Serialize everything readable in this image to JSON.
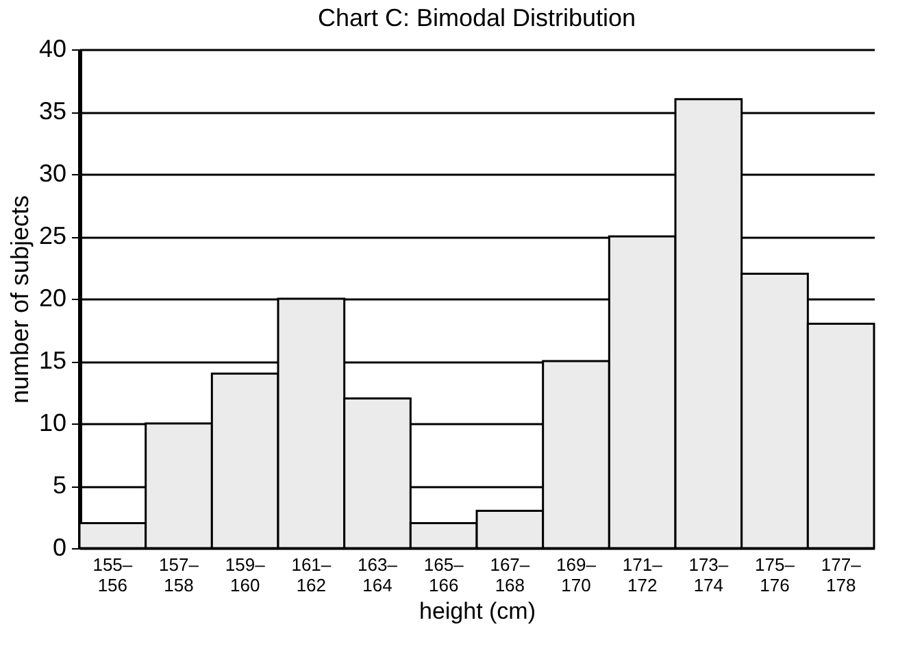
{
  "chart_data": {
    "type": "bar",
    "title": "Chart C: Bimodal Distribution",
    "xlabel": "height (cm)",
    "ylabel": "number of subjects",
    "categories": [
      "155–156",
      "157–158",
      "159–160",
      "161–162",
      "163–164",
      "165–166",
      "167–168",
      "169–170",
      "171–172",
      "173–174",
      "175–176",
      "177–178"
    ],
    "values": [
      2,
      10,
      14,
      20,
      12,
      2,
      3,
      15,
      25,
      36,
      22,
      18
    ],
    "color": "#ebebeb",
    "ylim": [
      0,
      40
    ],
    "yticks": [
      0,
      5,
      10,
      15,
      20,
      25,
      30,
      35,
      40
    ],
    "grid": "y"
  }
}
